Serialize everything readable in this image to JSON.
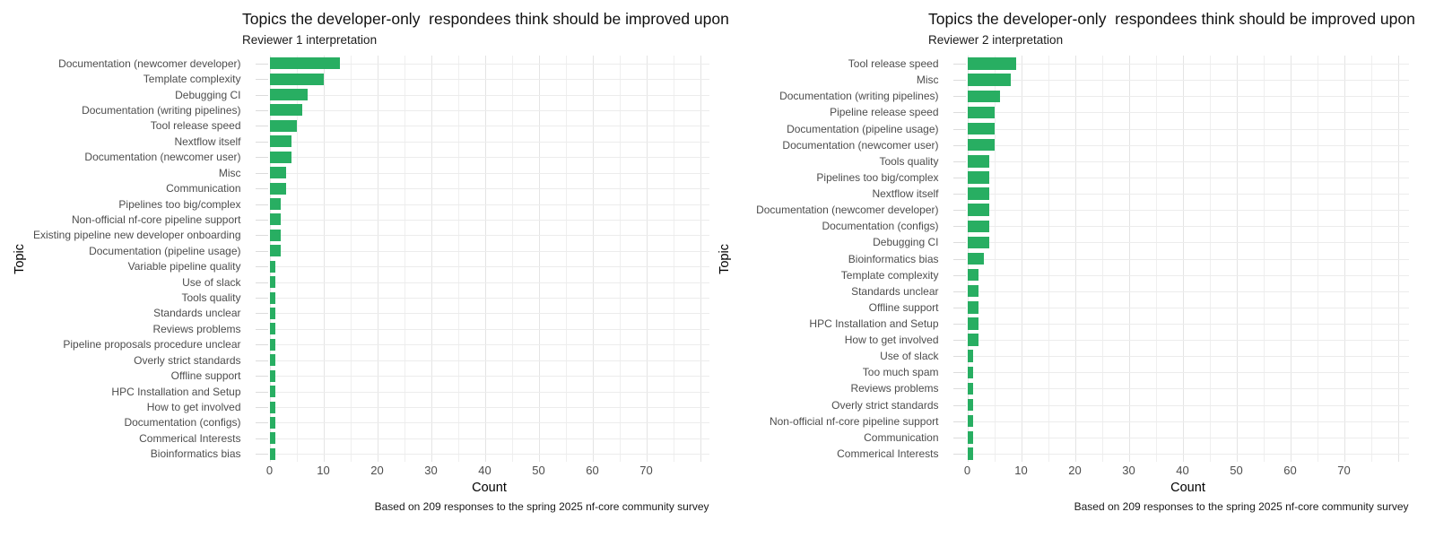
{
  "colors": {
    "bar_green": "#28AE62",
    "grid_major": "#e4e4e4",
    "grid_minor": "#efefef",
    "grid_row": "#ececec",
    "tick_text": "#4d4d4d",
    "background": "#ffffff"
  },
  "chart_data": [
    {
      "type": "bar",
      "orientation": "horizontal",
      "title": "Topics the developer-only  respondees think should be improved upon",
      "subtitle": "Reviewer 1 interpretation",
      "xlabel": "Count",
      "ylabel": "Topic",
      "caption": "Based on 209 responses to the spring 2025 nf-core community survey",
      "xlim": [
        0,
        81.6
      ],
      "xticks": [
        0,
        10,
        20,
        30,
        40,
        50,
        60,
        70
      ],
      "gridline_step": 5,
      "grid": "on",
      "legend": "none",
      "bar_color": "#28AE62",
      "categories": [
        "Documentation (newcomer developer)",
        "Template complexity",
        "Debugging CI",
        "Documentation (writing pipelines)",
        "Tool release speed",
        "Nextflow itself",
        "Documentation (newcomer user)",
        "Misc",
        "Communication",
        "Pipelines too big/complex",
        "Non-official nf-core pipeline support",
        "Existing pipeline new developer onboarding",
        "Documentation (pipeline usage)",
        "Variable pipeline quality",
        "Use of slack",
        "Tools quality",
        "Standards unclear",
        "Reviews problems",
        "Pipeline proposals procedure unclear",
        "Overly strict standards",
        "Offline support",
        "HPC Installation and Setup",
        "How to get involved",
        "Documentation (configs)",
        "Commerical Interests",
        "Bioinformatics bias"
      ],
      "values": [
        13,
        10,
        7,
        6,
        5,
        4,
        4,
        3,
        3,
        2,
        2,
        2,
        2,
        1,
        1,
        1,
        1,
        1,
        1,
        1,
        1,
        1,
        1,
        1,
        1,
        1
      ]
    },
    {
      "type": "bar",
      "orientation": "horizontal",
      "title": "Topics the developer-only  respondees think should be improved upon",
      "subtitle": "Reviewer 2 interpretation",
      "xlabel": "Count",
      "ylabel": "Topic",
      "caption": "Based on 209 responses to the spring 2025 nf-core community survey",
      "xlim": [
        0,
        82
      ],
      "xticks": [
        0,
        10,
        20,
        30,
        40,
        50,
        60,
        70
      ],
      "gridline_step": 5,
      "grid": "on",
      "legend": "none",
      "bar_color": "#28AE62",
      "categories": [
        "Tool release speed",
        "Misc",
        "Documentation (writing pipelines)",
        "Pipeline release speed",
        "Documentation (pipeline usage)",
        "Documentation (newcomer user)",
        "Tools quality",
        "Pipelines too big/complex",
        "Nextflow itself",
        "Documentation (newcomer developer)",
        "Documentation (configs)",
        "Debugging CI",
        "Bioinformatics bias",
        "Template complexity",
        "Standards unclear",
        "Offline support",
        "HPC Installation and Setup",
        "How to get involved",
        "Use of slack",
        "Too much spam",
        "Reviews problems",
        "Overly strict standards",
        "Non-official nf-core pipeline support",
        "Communication",
        "Commerical Interests"
      ],
      "values": [
        9,
        8,
        6,
        5,
        5,
        5,
        4,
        4,
        4,
        4,
        4,
        4,
        3,
        2,
        2,
        2,
        2,
        2,
        1,
        1,
        1,
        1,
        1,
        1,
        1
      ]
    }
  ]
}
